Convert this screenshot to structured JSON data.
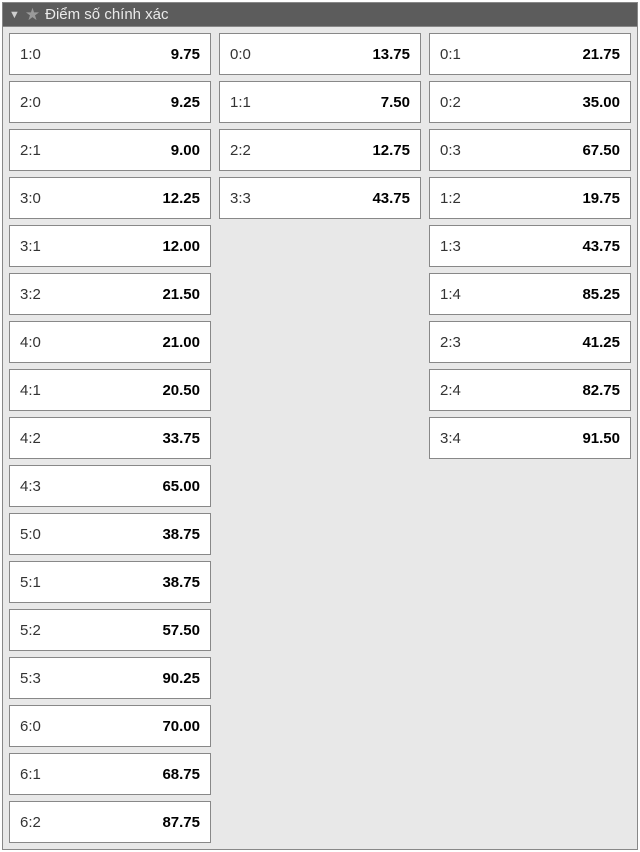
{
  "panel": {
    "title": "Điểm số chính xác",
    "columns": [
      [
        {
          "score": "1:0",
          "odds": "9.75"
        },
        {
          "score": "2:0",
          "odds": "9.25"
        },
        {
          "score": "2:1",
          "odds": "9.00"
        },
        {
          "score": "3:0",
          "odds": "12.25"
        },
        {
          "score": "3:1",
          "odds": "12.00"
        },
        {
          "score": "3:2",
          "odds": "21.50"
        },
        {
          "score": "4:0",
          "odds": "21.00"
        },
        {
          "score": "4:1",
          "odds": "20.50"
        },
        {
          "score": "4:2",
          "odds": "33.75"
        },
        {
          "score": "4:3",
          "odds": "65.00"
        },
        {
          "score": "5:0",
          "odds": "38.75"
        },
        {
          "score": "5:1",
          "odds": "38.75"
        },
        {
          "score": "5:2",
          "odds": "57.50"
        },
        {
          "score": "5:3",
          "odds": "90.25"
        },
        {
          "score": "6:0",
          "odds": "70.00"
        },
        {
          "score": "6:1",
          "odds": "68.75"
        },
        {
          "score": "6:2",
          "odds": "87.75"
        }
      ],
      [
        {
          "score": "0:0",
          "odds": "13.75"
        },
        {
          "score": "1:1",
          "odds": "7.50"
        },
        {
          "score": "2:2",
          "odds": "12.75"
        },
        {
          "score": "3:3",
          "odds": "43.75"
        }
      ],
      [
        {
          "score": "0:1",
          "odds": "21.75"
        },
        {
          "score": "0:2",
          "odds": "35.00"
        },
        {
          "score": "0:3",
          "odds": "67.50"
        },
        {
          "score": "1:2",
          "odds": "19.75"
        },
        {
          "score": "1:3",
          "odds": "43.75"
        },
        {
          "score": "1:4",
          "odds": "85.25"
        },
        {
          "score": "2:3",
          "odds": "41.25"
        },
        {
          "score": "2:4",
          "odds": "82.75"
        },
        {
          "score": "3:4",
          "odds": "91.50"
        }
      ]
    ]
  },
  "colors": {
    "header_bg": "#5c5c5c",
    "header_text": "#ffffff",
    "panel_bg": "#e8e8e8",
    "cell_bg": "#ffffff",
    "border": "#888888",
    "score_text": "#333333",
    "odds_text": "#000000"
  }
}
